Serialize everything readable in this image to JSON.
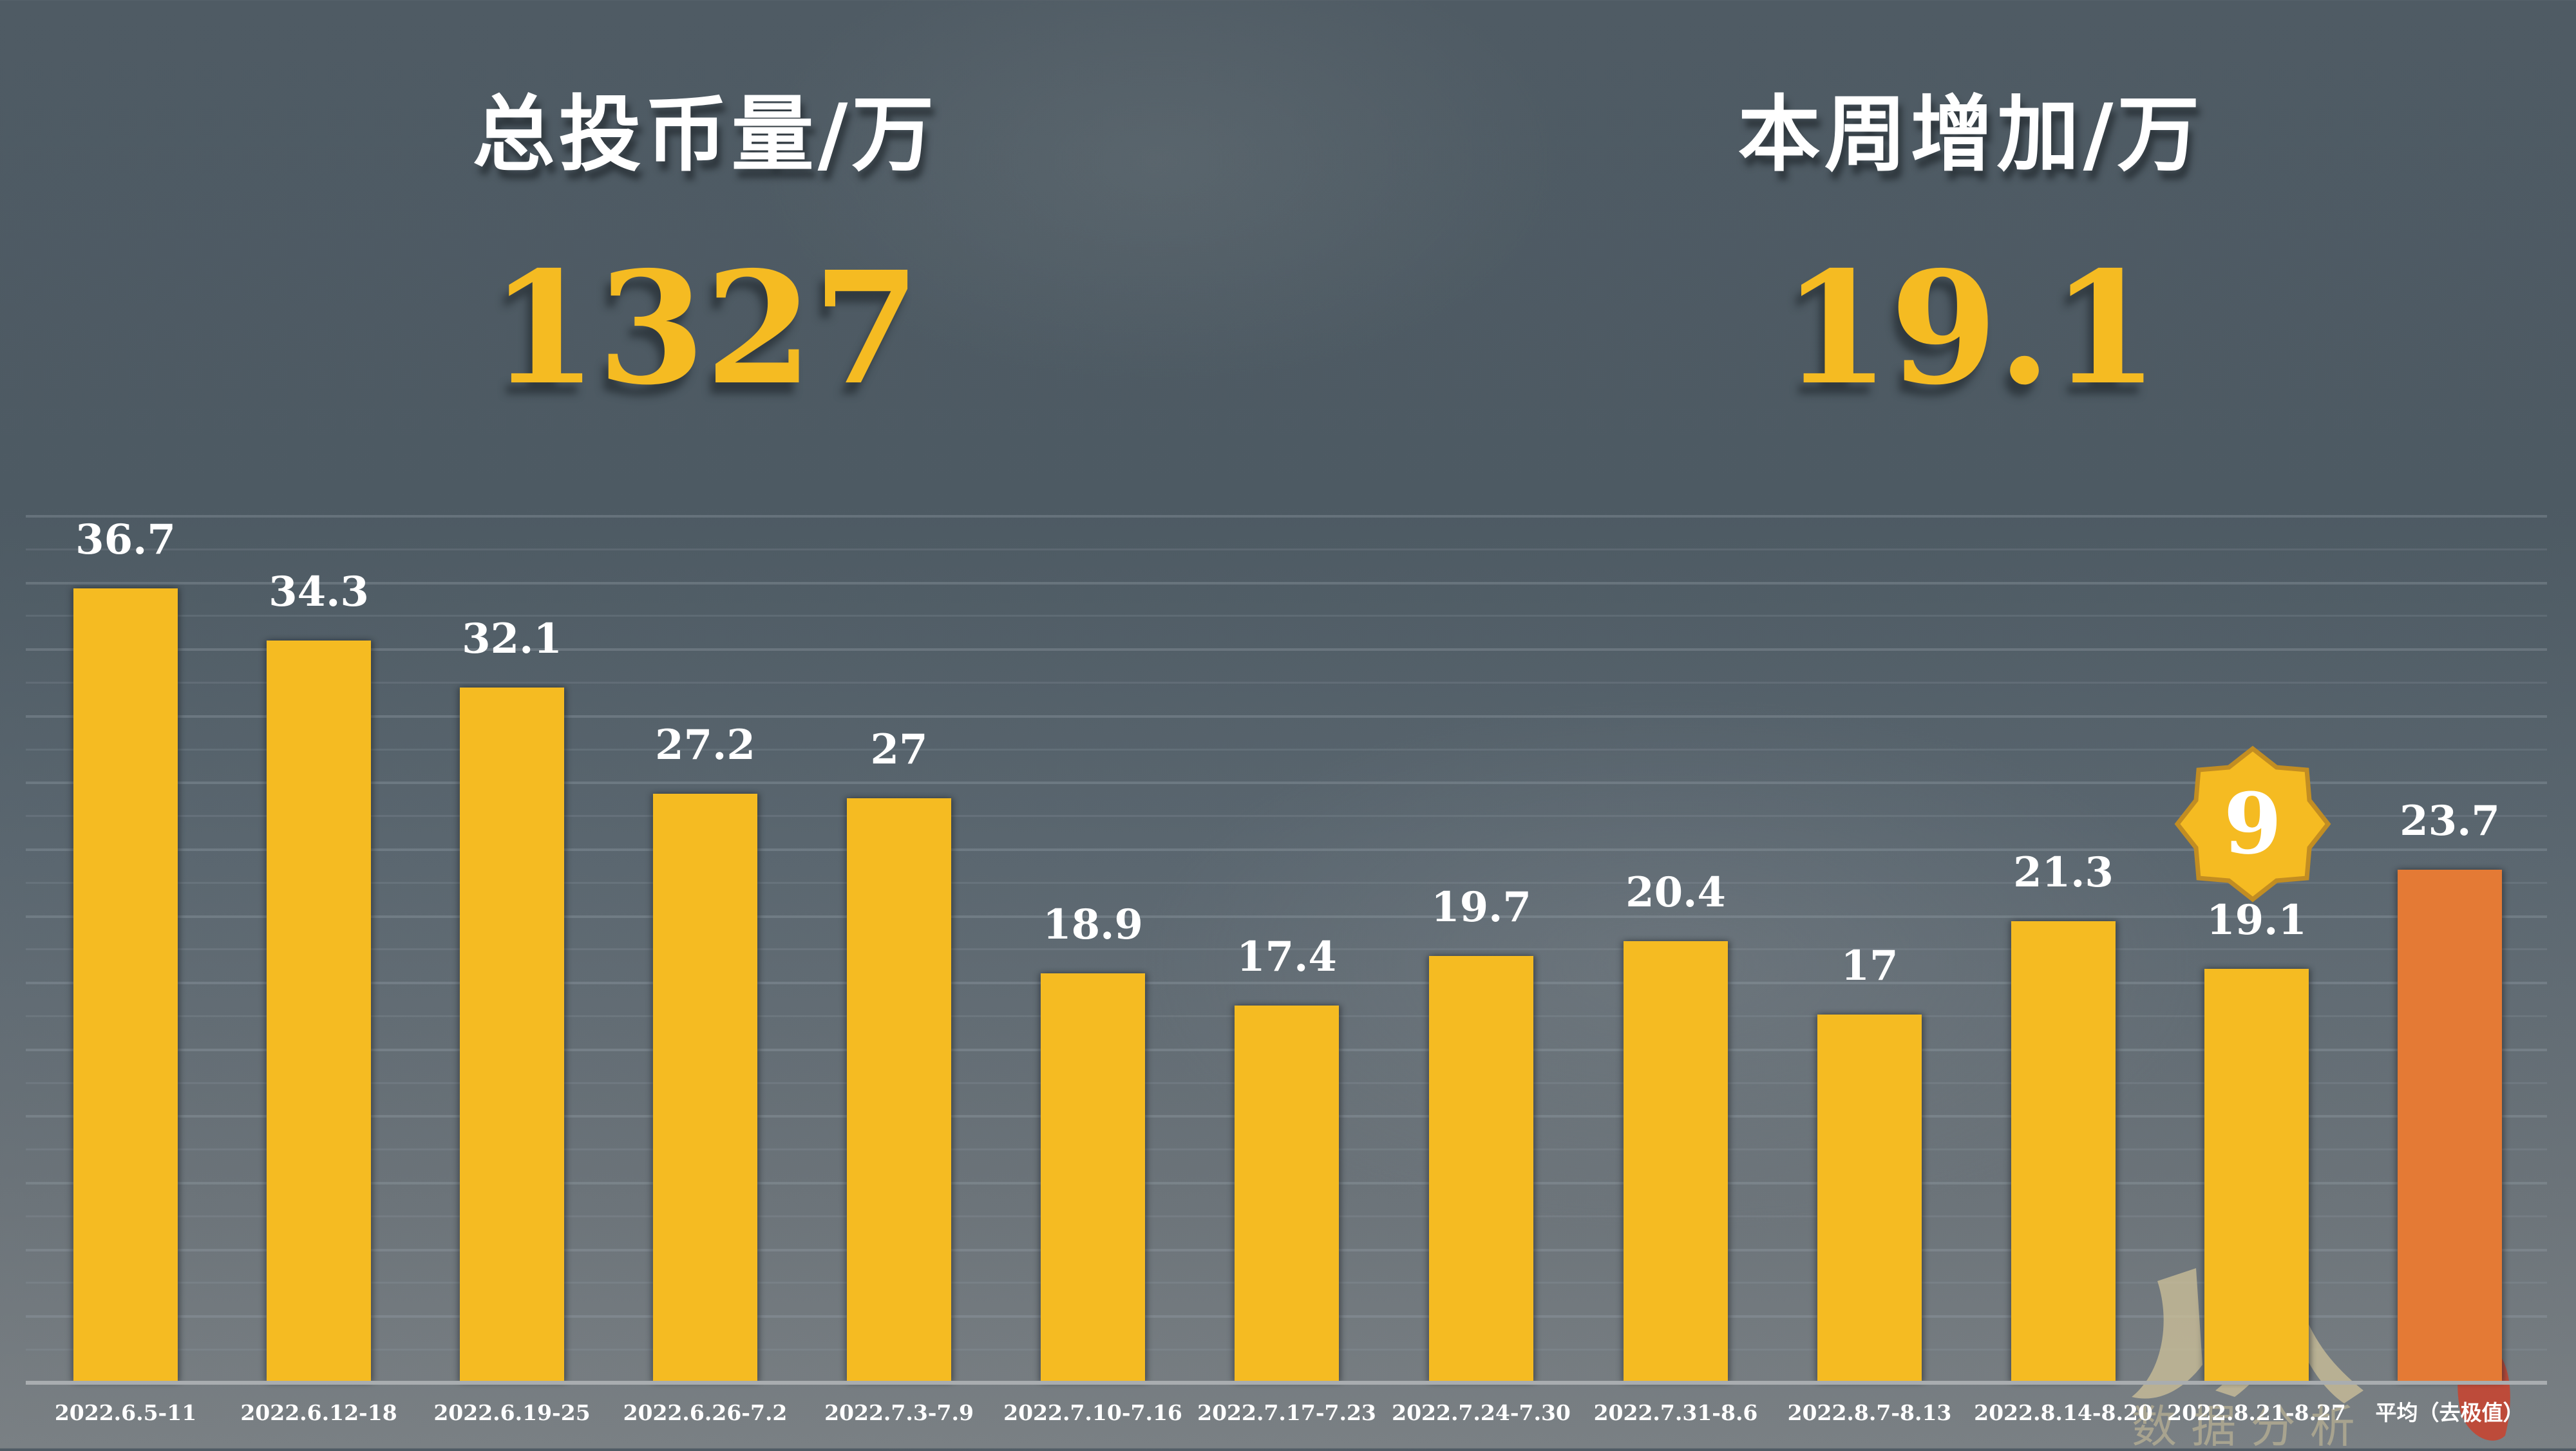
{
  "kpis": {
    "total": {
      "title": "总投币量/万",
      "value": "1327"
    },
    "weekly": {
      "title": "本周增加/万",
      "value": "19.1"
    }
  },
  "badge": {
    "text": "9",
    "color": "#f5bb22",
    "border_color": "#c28d22"
  },
  "colors": {
    "bar": "#f5bb22",
    "average_bar": "#e47a35",
    "label_text": "#ffffff",
    "background": "#55616a"
  },
  "watermark": {
    "text": "人 数据分析"
  },
  "chart_data": {
    "type": "bar",
    "title": "",
    "xlabel": "",
    "ylabel": "",
    "unit": "万",
    "grid": true,
    "legend": "none",
    "ylim": [
      0,
      40
    ],
    "categories": [
      "2022.6.5-11",
      "2022.6.12-18",
      "2022.6.19-25",
      "2022.6.26-7.2",
      "2022.7.3-7.9",
      "2022.7.10-7.16",
      "2022.7.17-7.23",
      "2022.7.24-7.30",
      "2022.7.31-8.6",
      "2022.8.7-8.13",
      "2022.8.14-8.20",
      "2022.8.21-8.27",
      "平均（去极值）"
    ],
    "values": [
      36.7,
      34.3,
      32.1,
      27.2,
      27,
      18.9,
      17.4,
      19.7,
      20.4,
      17,
      21.3,
      19.1,
      23.7
    ],
    "value_labels": [
      "36.7",
      "34.3",
      "32.1",
      "27.2",
      "27",
      "18.9",
      "17.4",
      "19.7",
      "20.4",
      "17",
      "21.3",
      "19.1",
      "23.7"
    ],
    "highlight": {
      "index": 12,
      "note": "average bar drawn in orange"
    },
    "annotations": [
      {
        "index": 11,
        "text": "9",
        "shape": "eight-point-star"
      }
    ]
  }
}
